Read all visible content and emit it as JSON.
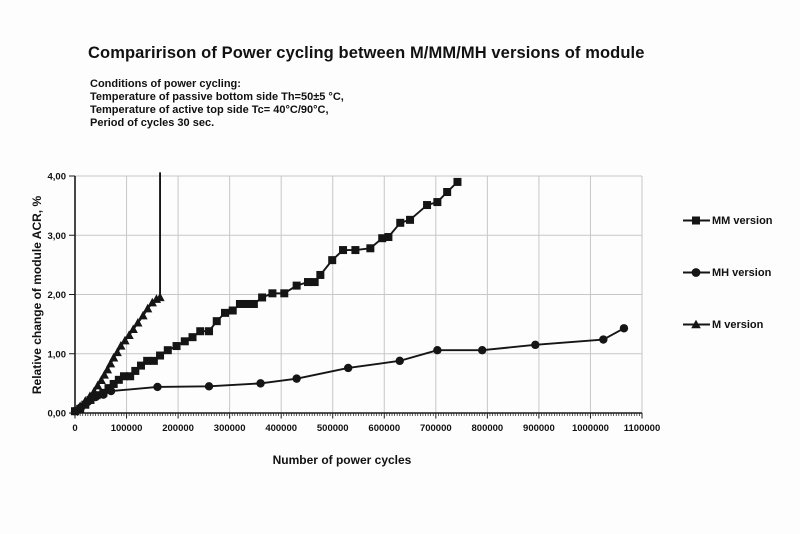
{
  "title": "Comparirison of Power cycling between M/MM/MH versions of module",
  "conditions": {
    "lines": [
      "Conditions of power cycling:",
      "Temperature of passive bottom side Th=50±5 °C,",
      "Temperature of active top side Tc= 40°C/90°C,",
      "Period of cycles 30 sec."
    ]
  },
  "chart_data": {
    "type": "line",
    "title": "Comparirison of Power cycling between M/MM/MH versions of module",
    "xlabel": "Number of power cycles",
    "ylabel": "Relative change of module ACR, %",
    "xlim": [
      0,
      1100000
    ],
    "ylim": [
      0,
      4
    ],
    "grid": true,
    "legend_position": "right-outside",
    "x_ticks": [
      0,
      100000,
      200000,
      300000,
      400000,
      500000,
      600000,
      700000,
      800000,
      900000,
      1000000,
      1100000
    ],
    "x_tick_labels": [
      "0",
      "100000",
      "200000",
      "300000",
      "400000",
      "500000",
      "600000",
      "700000",
      "800000",
      "900000",
      "1000000",
      "1100000"
    ],
    "x_minor_tick_step": 5000,
    "y_ticks": [
      0,
      1,
      2,
      3,
      4
    ],
    "y_tick_labels": [
      "0,00",
      "1,00",
      "2,00",
      "3,00",
      "4,00"
    ],
    "colors": {
      "line": "#151515",
      "grid": "#c7c7c7",
      "text": "#111111"
    },
    "series": [
      {
        "name": "MM version",
        "marker": "square",
        "points": [
          [
            0,
            0.03
          ],
          [
            10000,
            0.07
          ],
          [
            20000,
            0.14
          ],
          [
            30000,
            0.22
          ],
          [
            42000,
            0.3
          ],
          [
            55000,
            0.34
          ],
          [
            65000,
            0.42
          ],
          [
            75000,
            0.49
          ],
          [
            85000,
            0.56
          ],
          [
            95000,
            0.62
          ],
          [
            107000,
            0.62
          ],
          [
            117000,
            0.71
          ],
          [
            128000,
            0.8
          ],
          [
            140000,
            0.88
          ],
          [
            153000,
            0.88
          ],
          [
            165000,
            0.97
          ],
          [
            180000,
            1.06
          ],
          [
            197000,
            1.13
          ],
          [
            213000,
            1.21
          ],
          [
            228000,
            1.28
          ],
          [
            243000,
            1.38
          ],
          [
            260000,
            1.38
          ],
          [
            275000,
            1.55
          ],
          [
            291000,
            1.69
          ],
          [
            306000,
            1.73
          ],
          [
            320000,
            1.84
          ],
          [
            334000,
            1.84
          ],
          [
            347000,
            1.84
          ],
          [
            363000,
            1.95
          ],
          [
            383000,
            2.02
          ],
          [
            406000,
            2.02
          ],
          [
            430000,
            2.15
          ],
          [
            452000,
            2.21
          ],
          [
            465000,
            2.21
          ],
          [
            476000,
            2.33
          ],
          [
            499000,
            2.58
          ],
          [
            520000,
            2.75
          ],
          [
            544000,
            2.75
          ],
          [
            573000,
            2.78
          ],
          [
            596000,
            2.95
          ],
          [
            608000,
            2.97
          ],
          [
            631000,
            3.21
          ],
          [
            650000,
            3.26
          ],
          [
            683000,
            3.51
          ],
          [
            703000,
            3.56
          ],
          [
            722000,
            3.73
          ],
          [
            742000,
            3.9
          ]
        ]
      },
      {
        "name": "MH version",
        "marker": "circle",
        "points": [
          [
            0,
            0.03
          ],
          [
            12000,
            0.1
          ],
          [
            25000,
            0.19
          ],
          [
            40000,
            0.27
          ],
          [
            55000,
            0.31
          ],
          [
            70000,
            0.37
          ],
          [
            160000,
            0.44
          ],
          [
            260000,
            0.45
          ],
          [
            360000,
            0.5
          ],
          [
            430000,
            0.58
          ],
          [
            530000,
            0.76
          ],
          [
            630000,
            0.88
          ],
          [
            703000,
            1.06
          ],
          [
            790000,
            1.06
          ],
          [
            893000,
            1.15
          ],
          [
            1025000,
            1.24
          ],
          [
            1065000,
            1.43
          ]
        ]
      },
      {
        "name": "M version",
        "marker": "triangle",
        "points": [
          [
            0,
            0.04
          ],
          [
            10000,
            0.11
          ],
          [
            20000,
            0.2
          ],
          [
            29000,
            0.28
          ],
          [
            37000,
            0.36
          ],
          [
            44000,
            0.46
          ],
          [
            51000,
            0.55
          ],
          [
            57000,
            0.64
          ],
          [
            63000,
            0.73
          ],
          [
            69000,
            0.83
          ],
          [
            75000,
            0.93
          ],
          [
            82000,
            1.02
          ],
          [
            89000,
            1.13
          ],
          [
            97000,
            1.22
          ],
          [
            105000,
            1.31
          ],
          [
            113000,
            1.41
          ],
          [
            122000,
            1.52
          ],
          [
            132000,
            1.64
          ],
          [
            141000,
            1.76
          ],
          [
            150000,
            1.86
          ],
          [
            158000,
            1.92
          ],
          [
            165000,
            1.95
          ],
          [
            165000,
            4.05
          ]
        ]
      }
    ]
  }
}
